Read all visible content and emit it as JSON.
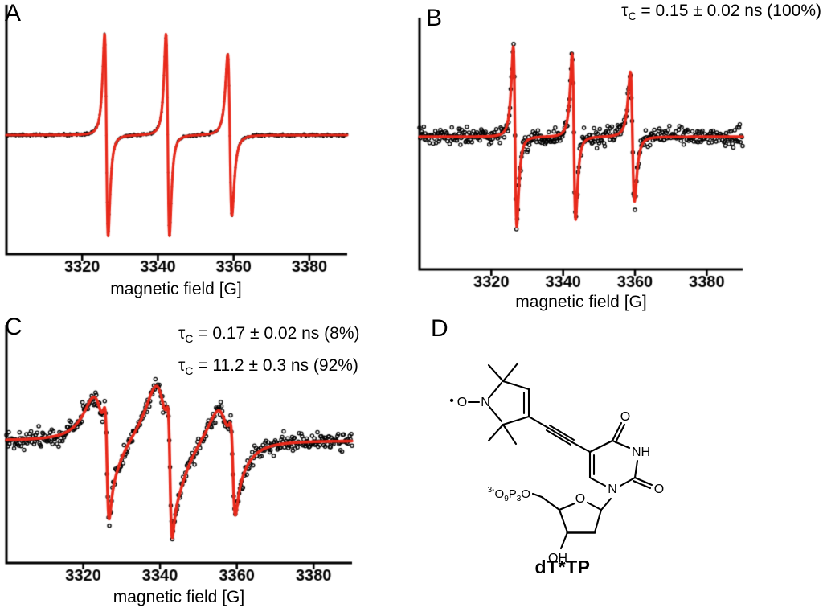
{
  "colors": {
    "axes": "#000000",
    "fit_line": "#e8291b",
    "data_points": "#000000"
  },
  "panels": {
    "a": {
      "label": "A"
    },
    "b": {
      "label": "B"
    },
    "c": {
      "label": "C"
    },
    "d": {
      "label": "D"
    }
  },
  "chart_data": [
    {
      "panel": "A",
      "type": "line",
      "title": "",
      "xlabel": "magnetic field [G]",
      "xlim": [
        3300,
        3390
      ],
      "xticks": [
        3320,
        3340,
        3360,
        3380
      ],
      "series": [
        {
          "name": "experimental EPR spectrum",
          "style": "filled-dots",
          "color": "#000000"
        },
        {
          "name": "simulated fit",
          "style": "line",
          "color": "#e8291b"
        }
      ],
      "peaks": [
        {
          "center": 3326.4,
          "width": 0.8,
          "amplitude": 1.0
        },
        {
          "center": 3342.6,
          "width": 0.8,
          "amplitude": 1.0
        },
        {
          "center": 3359.0,
          "width": 0.95,
          "amplitude": 0.8
        }
      ],
      "noise_sigma": 0.007,
      "annotations": []
    },
    {
      "panel": "B",
      "type": "line",
      "title": "",
      "xlabel": "magnetic field [G]",
      "xlim": [
        3300,
        3390
      ],
      "xticks": [
        3320,
        3340,
        3360,
        3380
      ],
      "series": [
        {
          "name": "experimental EPR spectrum",
          "style": "open-circles",
          "color": "#000000"
        },
        {
          "name": "simulated fit",
          "style": "line",
          "color": "#e8291b"
        }
      ],
      "peaks": [
        {
          "center": 3326.6,
          "width": 0.85,
          "amplitude": 1.0
        },
        {
          "center": 3343.0,
          "width": 0.85,
          "amplitude": 0.92
        },
        {
          "center": 3359.3,
          "width": 1.0,
          "amplitude": 0.72
        }
      ],
      "noise_sigma": 0.05,
      "annotations": [
        {
          "symbol": "τ",
          "sub": "C",
          "text": " = 0.15 ± 0.02 ns (100%)"
        }
      ]
    },
    {
      "panel": "C",
      "type": "line",
      "title": "",
      "xlabel": "magnetic field [G]",
      "xlim": [
        3300,
        3390
      ],
      "xticks": [
        3320,
        3340,
        3360,
        3380
      ],
      "series": [
        {
          "name": "experimental EPR spectrum",
          "style": "open-circles",
          "color": "#000000"
        },
        {
          "name": "two-component simulated fit",
          "style": "line",
          "color": "#e8291b"
        }
      ],
      "peaks": [
        {
          "center": 3326.2,
          "width": 0.9,
          "amplitude": 0.5
        },
        {
          "center": 3342.6,
          "width": 0.9,
          "amplitude": 0.55
        },
        {
          "center": 3359.0,
          "width": 1.05,
          "amplitude": 0.42
        },
        {
          "center": 3325.0,
          "width": 4.2,
          "amplitude": 0.42
        },
        {
          "center": 3341.5,
          "width": 4.6,
          "amplitude": 0.58
        },
        {
          "center": 3357.5,
          "width": 4.4,
          "amplitude": 0.36
        }
      ],
      "noise_sigma": 0.045,
      "annotations": [
        {
          "symbol": "τ",
          "sub": "C",
          "text": " = 0.17 ± 0.02 ns (8%)"
        },
        {
          "symbol": "τ",
          "sub": "C",
          "text": " = 11.2 ± 0.3 ns (92%)"
        }
      ]
    }
  ],
  "structure": {
    "name": "dT*TP",
    "labels": {
      "radical_dot": "•",
      "oxide_o": "O",
      "ring_n": "N",
      "carbonyl_o4": "O",
      "n3_h": "NH",
      "carbonyl_o2": "O",
      "n1": "N",
      "ring_o": "O",
      "hydroxyl": "OH",
      "phosphate_parts": [
        "3-",
        "O",
        "9",
        "P",
        "3",
        "O"
      ]
    }
  }
}
